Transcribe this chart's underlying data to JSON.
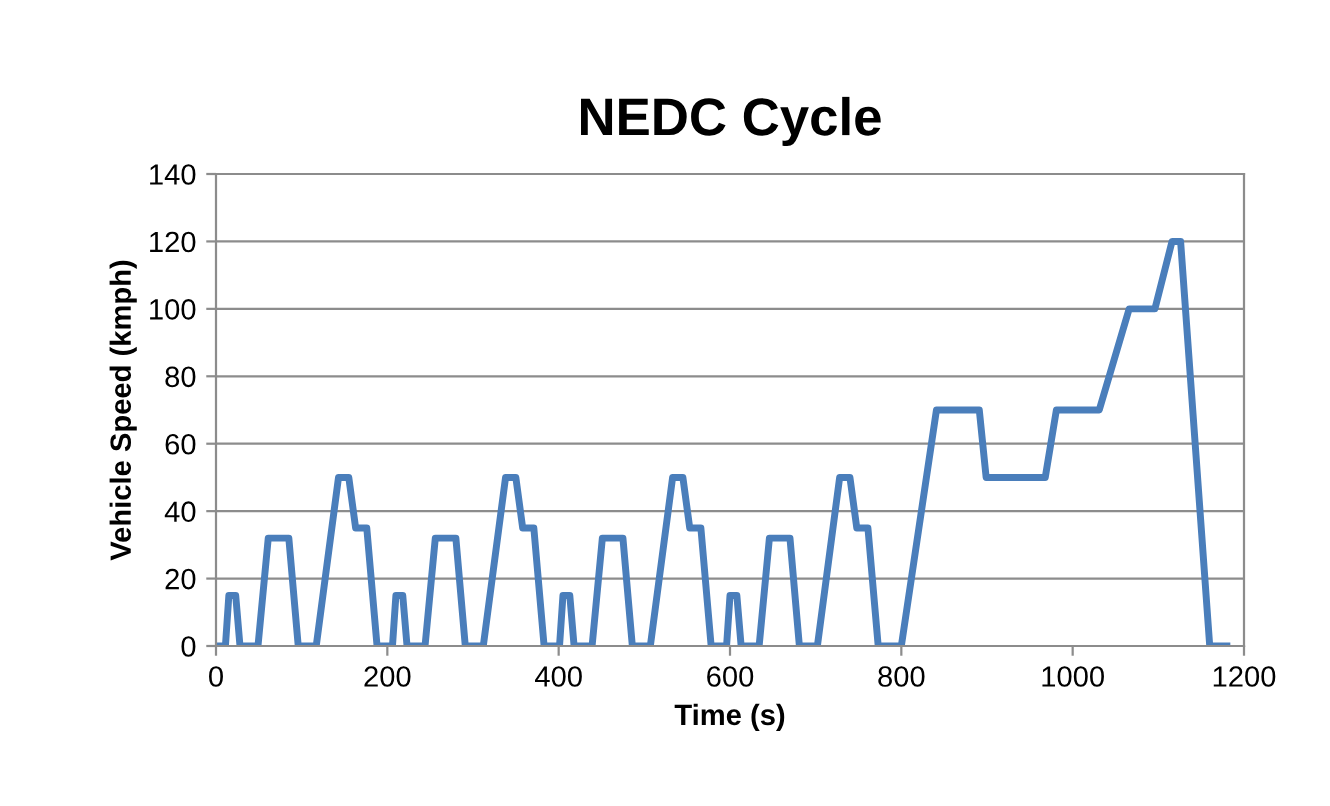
{
  "chart_data": {
    "type": "line",
    "title": "NEDC Cycle",
    "xlabel": "Time (s)",
    "ylabel": "Vehicle Speed (kmph)",
    "x": [
      0,
      11,
      15,
      23,
      28,
      49,
      61,
      85,
      96,
      117,
      143,
      155,
      163,
      176,
      188,
      195,
      206,
      210,
      218,
      223,
      244,
      256,
      280,
      291,
      312,
      338,
      350,
      358,
      371,
      383,
      390,
      401,
      405,
      413,
      418,
      439,
      451,
      475,
      486,
      507,
      533,
      545,
      553,
      566,
      578,
      585,
      596,
      600,
      608,
      613,
      634,
      646,
      670,
      681,
      702,
      728,
      740,
      748,
      761,
      773,
      800,
      841,
      891,
      899,
      968,
      981,
      1031,
      1066,
      1096,
      1116,
      1126,
      1160,
      1180
    ],
    "series": [
      {
        "color": "#4a7ebb",
        "values": [
          0,
          0,
          15,
          15,
          0,
          0,
          32,
          32,
          0,
          0,
          50,
          50,
          35,
          35,
          0,
          0,
          0,
          15,
          15,
          0,
          0,
          32,
          32,
          0,
          0,
          50,
          50,
          35,
          35,
          0,
          0,
          0,
          15,
          15,
          0,
          0,
          32,
          32,
          0,
          0,
          50,
          50,
          35,
          35,
          0,
          0,
          0,
          15,
          15,
          0,
          0,
          32,
          32,
          0,
          0,
          50,
          50,
          35,
          35,
          0,
          0,
          70,
          70,
          50,
          50,
          70,
          70,
          100,
          100,
          120,
          120,
          0,
          0
        ]
      }
    ],
    "xlim": [
      0,
      1200
    ],
    "xticks": [
      0,
      200,
      400,
      600,
      800,
      1000,
      1200
    ],
    "ylim": [
      0,
      140
    ],
    "yticks": [
      0,
      20,
      40,
      60,
      80,
      100,
      120,
      140
    ],
    "grid": "y",
    "legend": false,
    "marker": "none",
    "line_style": "solid"
  }
}
